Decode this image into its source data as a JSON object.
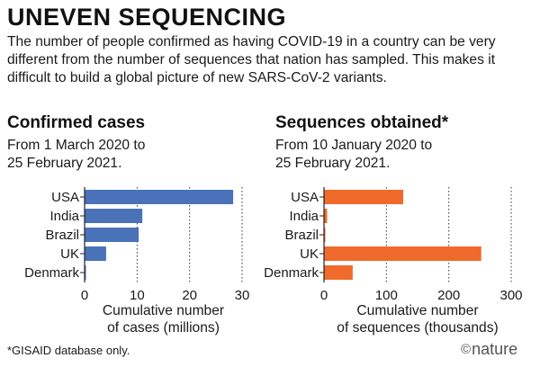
{
  "header": {
    "title": "UNEVEN SEQUENCING",
    "intro": "The number of people confirmed as having COVID-19 in a country can be very different from the number of sequences that nation has sampled. This makes it difficult to build a global picture of new SARS-CoV-2 variants."
  },
  "panels": [
    {
      "title": "Confirmed cases",
      "subtitle_line1": "From 1 March 2020 to",
      "subtitle_line2": "25 February 2021."
    },
    {
      "title": "Sequences obtained*",
      "subtitle_line1": "From 10 January 2020 to",
      "subtitle_line2": "25 February 2021."
    }
  ],
  "colors": {
    "cases": "#4a72b8",
    "sequences": "#ef6a2b",
    "grid": "#333333",
    "text": "#1a1a1a"
  },
  "chart_data": [
    {
      "type": "bar",
      "orientation": "horizontal",
      "title": "Confirmed cases",
      "categories": [
        "USA",
        "India",
        "Brazil",
        "UK",
        "Denmark"
      ],
      "values": [
        28.3,
        11.0,
        10.3,
        4.1,
        0.2
      ],
      "xlabel_line1": "Cumulative number",
      "xlabel_line2": "of cases (millions)",
      "xlim": [
        0,
        30
      ],
      "ticks": [
        0,
        10,
        20,
        30
      ],
      "grid": true
    },
    {
      "type": "bar",
      "orientation": "horizontal",
      "title": "Sequences obtained*",
      "categories": [
        "USA",
        "India",
        "Brazil",
        "UK",
        "Denmark"
      ],
      "values": [
        127,
        5,
        2,
        252,
        46
      ],
      "xlabel_line1": "Cumulative number",
      "xlabel_line2": "of sequences (thousands)",
      "xlim": [
        0,
        300
      ],
      "ticks": [
        0,
        100,
        200,
        300
      ],
      "grid": true
    }
  ],
  "footer": {
    "footnote": "*GISAID database only.",
    "logo_symbol": "©",
    "logo_text": "nature"
  }
}
